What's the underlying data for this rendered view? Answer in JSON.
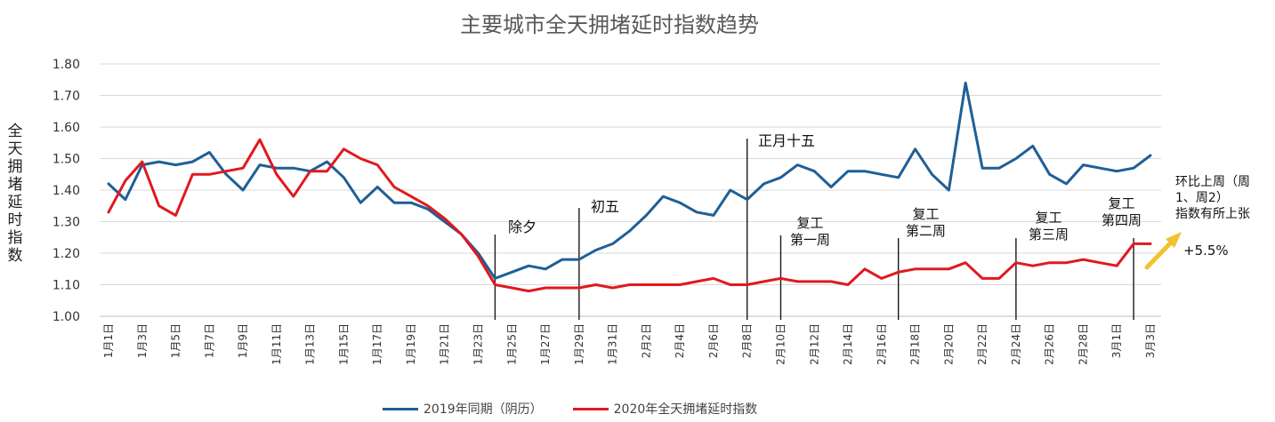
{
  "chart_data": {
    "type": "line",
    "title": "主要城市全天拥堵延时指数趋势",
    "ylabel": "全天拥堵延时指数",
    "ylim": [
      1.0,
      1.8
    ],
    "yticks": [
      "1.00",
      "1.10",
      "1.20",
      "1.30",
      "1.40",
      "1.50",
      "1.60",
      "1.70",
      "1.80"
    ],
    "grid": true,
    "legend_position": "bottom",
    "x": [
      "1月1日",
      "1月2日",
      "1月3日",
      "1月4日",
      "1月5日",
      "1月6日",
      "1月7日",
      "1月8日",
      "1月9日",
      "1月10日",
      "1月11日",
      "1月12日",
      "1月13日",
      "1月14日",
      "1月15日",
      "1月16日",
      "1月17日",
      "1月18日",
      "1月19日",
      "1月20日",
      "1月21日",
      "1月22日",
      "1月23日",
      "1月24日",
      "1月25日",
      "1月26日",
      "1月27日",
      "1月28日",
      "1月29日",
      "1月30日",
      "1月31日",
      "2月1日",
      "2月2日",
      "2月3日",
      "2月4日",
      "2月5日",
      "2月6日",
      "2月7日",
      "2月8日",
      "2月9日",
      "2月10日",
      "2月11日",
      "2月12日",
      "2月13日",
      "2月14日",
      "2月15日",
      "2月16日",
      "2月17日",
      "2月18日",
      "2月19日",
      "2月20日",
      "2月21日",
      "2月22日",
      "2月23日",
      "2月24日",
      "2月25日",
      "2月26日",
      "2月27日",
      "2月28日",
      "2月29日",
      "3月1日",
      "3月2日",
      "3月3日"
    ],
    "xtick_labels": [
      "1月1日",
      "1月3日",
      "1月5日",
      "1月7日",
      "1月9日",
      "1月11日",
      "1月13日",
      "1月15日",
      "1月17日",
      "1月19日",
      "1月21日",
      "1月23日",
      "1月25日",
      "1月27日",
      "1月29日",
      "1月31日",
      "2月2日",
      "2月4日",
      "2月6日",
      "2月8日",
      "2月10日",
      "2月12日",
      "2月14日",
      "2月16日",
      "2月18日",
      "2月20日",
      "2月22日",
      "2月24日",
      "2月26日",
      "2月28日",
      "3月1日",
      "3月3日"
    ],
    "series": [
      {
        "name": "2019年同期（阴历）",
        "color": "#1f5f95",
        "values": [
          1.42,
          1.37,
          1.48,
          1.49,
          1.48,
          1.49,
          1.52,
          1.45,
          1.4,
          1.48,
          1.47,
          1.47,
          1.46,
          1.49,
          1.44,
          1.36,
          1.41,
          1.36,
          1.36,
          1.34,
          1.3,
          1.26,
          1.2,
          1.12,
          1.14,
          1.16,
          1.15,
          1.18,
          1.18,
          1.21,
          1.23,
          1.27,
          1.32,
          1.38,
          1.36,
          1.33,
          1.32,
          1.4,
          1.37,
          1.42,
          1.44,
          1.48,
          1.46,
          1.41,
          1.46,
          1.46,
          1.45,
          1.44,
          1.53,
          1.45,
          1.4,
          1.74,
          1.47,
          1.47,
          1.5,
          1.54,
          1.45,
          1.42,
          1.48,
          1.47,
          1.46,
          1.47,
          1.51
        ]
      },
      {
        "name": "2020年全天拥堵延时指数",
        "color": "#e0191f",
        "values": [
          1.33,
          1.43,
          1.49,
          1.35,
          1.32,
          1.45,
          1.45,
          1.46,
          1.47,
          1.56,
          1.45,
          1.38,
          1.46,
          1.46,
          1.53,
          1.5,
          1.48,
          1.41,
          1.38,
          1.35,
          1.31,
          1.26,
          1.19,
          1.1,
          1.09,
          1.08,
          1.09,
          1.09,
          1.09,
          1.1,
          1.09,
          1.1,
          1.1,
          1.1,
          1.1,
          1.11,
          1.12,
          1.1,
          1.1,
          1.11,
          1.12,
          1.11,
          1.11,
          1.11,
          1.1,
          1.15,
          1.12,
          1.14,
          1.15,
          1.15,
          1.15,
          1.17,
          1.12,
          1.12,
          1.17,
          1.16,
          1.17,
          1.17,
          1.18,
          1.17,
          1.16,
          1.23,
          1.23
        ]
      }
    ],
    "annotations": [
      {
        "text": "除夕",
        "at": "1月24日"
      },
      {
        "text": "初五",
        "at": "1月29日"
      },
      {
        "text": "正月十五",
        "at": "2月8日"
      },
      {
        "text": "复工\n第一周",
        "at": "2月10日"
      },
      {
        "text": "复工\n第二周",
        "at": "2月17日"
      },
      {
        "text": "复工\n第三周",
        "at": "2月24日"
      },
      {
        "text": "复工\n第四周",
        "at": "3月2日"
      }
    ],
    "side_note": {
      "text": "环比上周（周\n1、周2）\n指数有所上张",
      "value": "+5.5%",
      "arrow_color": "#f2c12e"
    }
  }
}
